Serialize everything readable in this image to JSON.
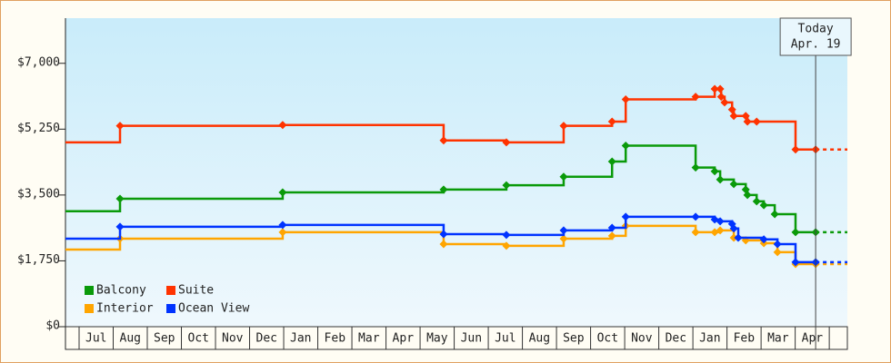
{
  "chart_data": {
    "type": "step",
    "categories": [
      "Jul",
      "Aug",
      "Sep",
      "Oct",
      "Nov",
      "Dec",
      "Jan",
      "Feb",
      "Mar",
      "Apr",
      "May",
      "Jun",
      "Jul",
      "Aug",
      "Sep",
      "Oct",
      "Nov",
      "Dec",
      "Jan",
      "Feb",
      "Mar",
      "Apr"
    ],
    "xlim": [
      -0.4,
      22.53
    ],
    "ylim": [
      0,
      8200
    ],
    "yticks": [
      {
        "value": 0,
        "label": "$0"
      },
      {
        "value": 1750,
        "label": "$1,750"
      },
      {
        "value": 3500,
        "label": "$3,500"
      },
      {
        "value": 5250,
        "label": "$5,250"
      },
      {
        "value": 7000,
        "label": "$7,000"
      }
    ],
    "grid": false,
    "legend": "lower left",
    "annotation": {
      "lines": [
        "Today",
        "Apr. 19"
      ],
      "x": 21.6
    },
    "series": [
      {
        "name": "Balcony",
        "color": "#0a9a0a",
        "x": [
          -0.4,
          1.2,
          5.97,
          10.69,
          12.53,
          14.21,
          15.63,
          16.03,
          18.08,
          18.64,
          18.8,
          19.2,
          19.55,
          19.6,
          19.87,
          20.08,
          20.4,
          21.01,
          21.6
        ],
        "values": [
          3070,
          3400,
          3570,
          3645,
          3760,
          3985,
          4390,
          4810,
          4230,
          4130,
          3910,
          3790,
          3645,
          3500,
          3330,
          3230,
          2990,
          2510,
          2510
        ]
      },
      {
        "name": "Suite",
        "color": "#ff3300",
        "x": [
          -0.4,
          1.2,
          5.97,
          10.69,
          12.53,
          14.21,
          15.63,
          16.03,
          18.08,
          18.64,
          18.8,
          18.83,
          18.93,
          19.15,
          19.2,
          19.55,
          19.6,
          19.87,
          21.01,
          21.6
        ],
        "values": [
          4900,
          5340,
          5360,
          4950,
          4900,
          5340,
          5450,
          6040,
          6110,
          6320,
          6320,
          6110,
          5960,
          5770,
          5600,
          5600,
          5450,
          5450,
          4710,
          4710
        ]
      },
      {
        "name": "Interior",
        "color": "#ffa500",
        "x": [
          -0.4,
          1.2,
          5.97,
          10.69,
          12.53,
          14.21,
          15.63,
          16.03,
          18.08,
          18.64,
          18.8,
          19.2,
          19.55,
          20.08,
          20.48,
          21.01,
          21.6
        ],
        "values": [
          2050,
          2340,
          2510,
          2195,
          2150,
          2340,
          2415,
          2680,
          2510,
          2510,
          2560,
          2365,
          2295,
          2220,
          1980,
          1665,
          1665
        ]
      },
      {
        "name": "Ocean View",
        "color": "#0033ff",
        "x": [
          -0.4,
          1.2,
          5.97,
          10.69,
          12.53,
          14.21,
          15.63,
          16.03,
          18.08,
          18.64,
          18.8,
          19.15,
          19.2,
          19.33,
          20.08,
          20.48,
          21.01,
          21.6
        ],
        "values": [
          2340,
          2655,
          2705,
          2460,
          2440,
          2560,
          2630,
          2920,
          2920,
          2850,
          2800,
          2730,
          2610,
          2365,
          2320,
          2195,
          1715,
          1715
        ]
      }
    ]
  }
}
